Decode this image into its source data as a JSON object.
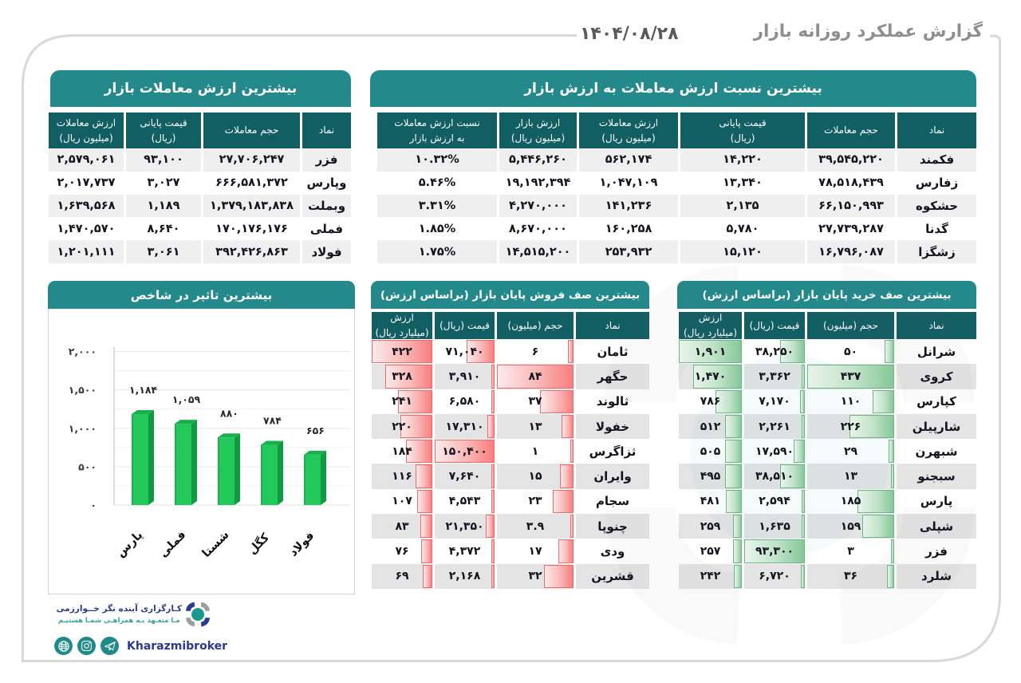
{
  "page": {
    "title": "گزارش عملکرد روزانه بازار",
    "date": "۱۴۰۴/۰۸/۲۸"
  },
  "colors": {
    "panel_title_teal": "#23898b",
    "header_teal": "#115e63",
    "stripe_gray": "#efefef",
    "stripe_gray_mid": "#e4e4e4",
    "frame_gray": "#d9d9d9",
    "sell_bar_red": "#f97e7e",
    "buy_bar_green": "#85c898",
    "chart_bar_green": "#22c95a",
    "brand_navy": "#2b3990",
    "brand_teal": "#2ea79b"
  },
  "top_value_table": {
    "title": "بیشترین ارزش معاملات بازار",
    "columns": [
      "نماد",
      "حجم معاملات",
      "قیمت پایانی\n(ریال)",
      "ارزش معاملات\n(میلیون ریال)"
    ],
    "rows": [
      {
        "symbol": "فزر",
        "volume": "۲۷,۷۰۶,۲۴۷",
        "price": "۹۳,۱۰۰",
        "value": "۲,۵۷۹,۰۶۱"
      },
      {
        "symbol": "وپارس",
        "volume": "۶۶۶,۵۸۱,۳۷۲",
        "price": "۳,۰۲۷",
        "value": "۲,۰۱۷,۷۳۷"
      },
      {
        "symbol": "وبملت",
        "volume": "۱,۳۷۹,۱۸۳,۸۳۸",
        "price": "۱,۱۸۹",
        "value": "۱,۶۳۹,۵۶۸"
      },
      {
        "symbol": "فملی",
        "volume": "۱۷۰,۱۷۶,۱۷۶",
        "price": "۸,۶۴۰",
        "value": "۱,۴۷۰,۵۷۰"
      },
      {
        "symbol": "فولاد",
        "volume": "۳۹۲,۴۲۶,۸۶۳",
        "price": "۳,۰۶۱",
        "value": "۱,۲۰۱,۱۱۱"
      }
    ]
  },
  "ratio_table": {
    "title": "بیشترین نسبت ارزش معاملات به ارزش بازار",
    "columns": [
      "نماد",
      "حجم معاملات",
      "قیمت پایانی\n(ریال)",
      "ارزش معاملات\n(میلیون ریال)",
      "ارزش بازار\n(میلیون ریال)",
      "نسبت ارزش معاملات\nبه ارزش بازار"
    ],
    "rows": [
      {
        "symbol": "فکمند",
        "volume": "۳۹,۵۴۵,۲۲۰",
        "price": "۱۴,۲۲۰",
        "trade_value": "۵۶۲,۱۷۴",
        "market_value": "۵,۴۴۶,۲۶۰",
        "ratio": "۱۰.۳۲%"
      },
      {
        "symbol": "زفارس",
        "volume": "۷۸,۵۱۸,۴۳۹",
        "price": "۱۳,۳۴۰",
        "trade_value": "۱,۰۴۷,۱۰۹",
        "market_value": "۱۹,۱۹۲,۳۹۴",
        "ratio": "۵.۴۶%"
      },
      {
        "symbol": "حشکوه",
        "volume": "۶۶,۱۵۰,۹۹۳",
        "price": "۲,۱۳۵",
        "trade_value": "۱۴۱,۲۳۶",
        "market_value": "۴,۲۷۰,۰۰۰",
        "ratio": "۳.۳۱%"
      },
      {
        "symbol": "گدنا",
        "volume": "۲۷,۷۳۹,۲۸۷",
        "price": "۵,۷۸۰",
        "trade_value": "۱۶۰,۲۵۸",
        "market_value": "۸,۶۷۰,۰۰۰",
        "ratio": "۱.۸۵%"
      },
      {
        "symbol": "زشگزا",
        "volume": "۱۶,۷۹۶,۰۸۷",
        "price": "۱۵,۱۲۰",
        "trade_value": "۲۵۳,۹۳۲",
        "market_value": "۱۴,۵۱۵,۲۰۰",
        "ratio": "۱.۷۵%"
      }
    ]
  },
  "chart_data": {
    "type": "bar",
    "title": "بیشترین تاثیر در شاخص",
    "categories": [
      "پارس",
      "فملی",
      "شستا",
      "کگل",
      "فولاد"
    ],
    "values": [
      1184,
      1059,
      880,
      784,
      656
    ],
    "value_labels": [
      "۱,۱۸۴",
      "۱,۰۵۹",
      "۸۸۰",
      "۷۸۴",
      "۶۵۶"
    ],
    "xlabel": "",
    "ylabel": "",
    "ylim": [
      0,
      2000
    ],
    "y_ticks": [
      {
        "value": 0,
        "label": "۰"
      },
      {
        "value": 500,
        "label": "۵۰۰"
      },
      {
        "value": 1000,
        "label": "۱,۰۰۰"
      },
      {
        "value": 1500,
        "label": "۱,۵۰۰"
      },
      {
        "value": 2000,
        "label": "۲,۰۰۰"
      }
    ],
    "grid": true,
    "legend": false
  },
  "sell_queue_table": {
    "title": "بیشترین صف فروش پایان بازار (براساس ارزش)",
    "columns": [
      "نماد",
      "حجم (میلیون)",
      "قیمت (ریال)",
      "ارزش\n(میلیارد ریال)"
    ],
    "rows": [
      {
        "symbol": "ثامان",
        "volume": "۶",
        "price": "۷۱,۰۴۰",
        "value": "۴۲۲"
      },
      {
        "symbol": "حگهر",
        "volume": "۸۴",
        "price": "۳,۹۱۰",
        "value": "۳۲۸"
      },
      {
        "symbol": "ثالوند",
        "volume": "۳۷",
        "price": "۶,۵۸۰",
        "value": "۲۴۱"
      },
      {
        "symbol": "خفولا",
        "volume": "۱۳",
        "price": "۱۷,۳۱۰",
        "value": "۲۲۰"
      },
      {
        "symbol": "ثزاگرس",
        "volume": "۱",
        "price": "۱۵۰,۴۰۰",
        "value": "۱۸۴"
      },
      {
        "symbol": "وایران",
        "volume": "۱۵",
        "price": "۷,۶۴۰",
        "value": "۱۱۶"
      },
      {
        "symbol": "سجام",
        "volume": "۲۳",
        "price": "۴,۵۴۳",
        "value": "۱۰۷"
      },
      {
        "symbol": "چنوپا",
        "volume": "۳.۹",
        "price": "۲۱,۳۵۰",
        "value": "۸۳"
      },
      {
        "symbol": "ودی",
        "volume": "۱۷",
        "price": "۴,۳۷۲",
        "value": "۷۶"
      },
      {
        "symbol": "قشرین",
        "volume": "۳۲",
        "price": "۲,۱۶۸",
        "value": "۶۹"
      }
    ]
  },
  "buy_queue_table": {
    "title": "بیشترین صف خرید پایان بازار (براساس ارزش)",
    "columns": [
      "نماد",
      "حجم (میلیون)",
      "قیمت (ریال)",
      "ارزش\n(میلیارد ریال)"
    ],
    "rows": [
      {
        "symbol": "شرانل",
        "volume": "۵۰",
        "price": "۳۸,۲۵۰",
        "value": "۱,۹۰۱"
      },
      {
        "symbol": "کروی",
        "volume": "۴۳۷",
        "price": "۳,۳۶۲",
        "value": "۱,۴۷۰"
      },
      {
        "symbol": "کپارس",
        "volume": "۱۱۰",
        "price": "۷,۱۷۰",
        "value": "۷۸۶"
      },
      {
        "symbol": "شارپیلن",
        "volume": "۲۲۶",
        "price": "۲,۲۶۱",
        "value": "۵۱۲"
      },
      {
        "symbol": "شبهرن",
        "volume": "۲۹",
        "price": "۱۷,۵۹۰",
        "value": "۵۰۵"
      },
      {
        "symbol": "سبجنو",
        "volume": "۱۳",
        "price": "۳۸,۵۱۰",
        "value": "۴۹۵"
      },
      {
        "symbol": "پارس",
        "volume": "۱۸۵",
        "price": "۲,۵۹۴",
        "value": "۴۸۱"
      },
      {
        "symbol": "شپلی",
        "volume": "۱۵۹",
        "price": "۱,۶۳۵",
        "value": "۲۵۹"
      },
      {
        "symbol": "فزر",
        "volume": "۳",
        "price": "۹۳,۳۰۰",
        "value": "۲۵۷"
      },
      {
        "symbol": "شلرد",
        "volume": "۳۶",
        "price": "۶,۷۲۰",
        "value": "۲۴۲"
      }
    ]
  },
  "footer": {
    "brand_line1": "کـارگزاری آینده نگر خــوارزمی",
    "brand_line2": "مـا متعـهد بـه همراهـی شمـا هستیـم",
    "handle": "Kharazmibroker",
    "icons": [
      "globe-icon",
      "instagram-icon",
      "telegram-icon"
    ]
  }
}
